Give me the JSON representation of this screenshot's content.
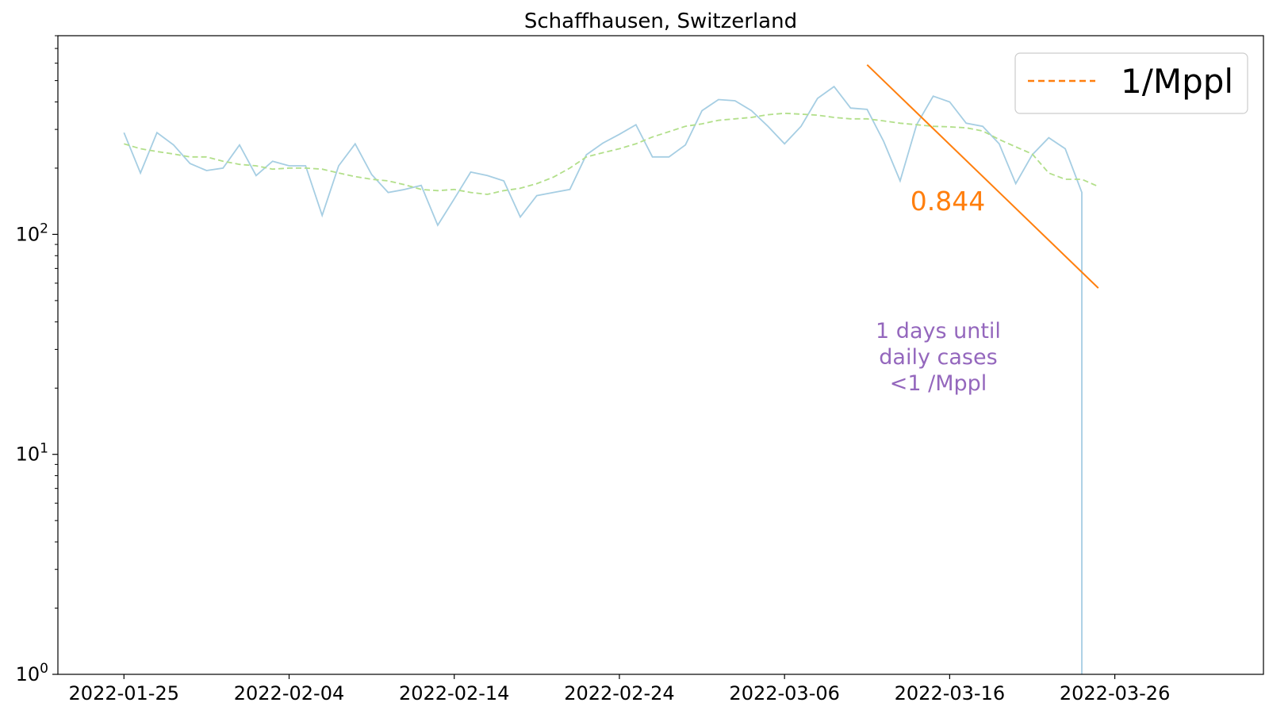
{
  "chart_data": {
    "type": "line",
    "title": "Schaffhausen, Switzerland",
    "xlabel": "",
    "ylabel": "",
    "yscale": "log",
    "ylim": [
      1,
      800
    ],
    "xlim": [
      "2022-01-21",
      "2022-04-04"
    ],
    "x_ticks": [
      "2022-01-25",
      "2022-02-04",
      "2022-02-14",
      "2022-02-24",
      "2022-03-06",
      "2022-03-16",
      "2022-03-26",
      ""
    ],
    "y_ticks": [
      {
        "value": 1,
        "base": "10",
        "exp": "0"
      },
      {
        "value": 10,
        "base": "10",
        "exp": "1"
      },
      {
        "value": 100,
        "base": "10",
        "exp": "2"
      }
    ],
    "grid": false,
    "legend": {
      "position": "top-right",
      "entries": [
        {
          "label": "1/Mppl",
          "color": "#ff7f0e",
          "style": "dashed"
        }
      ]
    },
    "series": [
      {
        "color": "#a6cee3",
        "style": "solid",
        "x": [
          "2022-01-25",
          "2022-01-26",
          "2022-01-27",
          "2022-01-28",
          "2022-01-29",
          "2022-01-30",
          "2022-01-31",
          "2022-02-01",
          "2022-02-02",
          "2022-02-03",
          "2022-02-04",
          "2022-02-05",
          "2022-02-06",
          "2022-02-07",
          "2022-02-08",
          "2022-02-09",
          "2022-02-10",
          "2022-02-11",
          "2022-02-12",
          "2022-02-13",
          "2022-02-14",
          "2022-02-15",
          "2022-02-16",
          "2022-02-17",
          "2022-02-18",
          "2022-02-19",
          "2022-02-20",
          "2022-02-21",
          "2022-02-22",
          "2022-02-23",
          "2022-02-24",
          "2022-02-25",
          "2022-02-26",
          "2022-02-27",
          "2022-02-28",
          "2022-03-01",
          "2022-03-02",
          "2022-03-03",
          "2022-03-04",
          "2022-03-05",
          "2022-03-06",
          "2022-03-07",
          "2022-03-08",
          "2022-03-09",
          "2022-03-10",
          "2022-03-11",
          "2022-03-12",
          "2022-03-13",
          "2022-03-14",
          "2022-03-15",
          "2022-03-16",
          "2022-03-17",
          "2022-03-18",
          "2022-03-19",
          "2022-03-20",
          "2022-03-21",
          "2022-03-22",
          "2022-03-23",
          "2022-03-24",
          "2022-03-24"
        ],
        "y": [
          290,
          190,
          290,
          255,
          210,
          195,
          200,
          255,
          185,
          215,
          205,
          205,
          122,
          205,
          258,
          187,
          155,
          160,
          167,
          110,
          145,
          192,
          185,
          175,
          120,
          150,
          155,
          160,
          230,
          260,
          285,
          315,
          225,
          225,
          255,
          365,
          410,
          405,
          365,
          310,
          258,
          310,
          415,
          470,
          375,
          370,
          265,
          175,
          315,
          425,
          400,
          320,
          310,
          258,
          170,
          230,
          275,
          245,
          155,
          1
        ]
      },
      {
        "color": "#b2df8a",
        "style": "dashed",
        "x": [
          "2022-01-25",
          "2022-01-26",
          "2022-01-27",
          "2022-01-28",
          "2022-01-29",
          "2022-01-30",
          "2022-01-31",
          "2022-02-01",
          "2022-02-02",
          "2022-02-03",
          "2022-02-04",
          "2022-02-05",
          "2022-02-06",
          "2022-02-07",
          "2022-02-08",
          "2022-02-09",
          "2022-02-10",
          "2022-02-11",
          "2022-02-12",
          "2022-02-13",
          "2022-02-14",
          "2022-02-15",
          "2022-02-16",
          "2022-02-17",
          "2022-02-18",
          "2022-02-19",
          "2022-02-20",
          "2022-02-21",
          "2022-02-22",
          "2022-02-23",
          "2022-02-24",
          "2022-02-25",
          "2022-02-26",
          "2022-02-27",
          "2022-02-28",
          "2022-03-01",
          "2022-03-02",
          "2022-03-03",
          "2022-03-04",
          "2022-03-05",
          "2022-03-06",
          "2022-03-07",
          "2022-03-08",
          "2022-03-09",
          "2022-03-10",
          "2022-03-11",
          "2022-03-12",
          "2022-03-13",
          "2022-03-14",
          "2022-03-15",
          "2022-03-16",
          "2022-03-17",
          "2022-03-18",
          "2022-03-19",
          "2022-03-20",
          "2022-03-21",
          "2022-03-22",
          "2022-03-23",
          "2022-03-24",
          "2022-03-25"
        ],
        "y": [
          258,
          245,
          238,
          232,
          225,
          225,
          215,
          208,
          205,
          198,
          200,
          200,
          198,
          190,
          183,
          178,
          175,
          168,
          160,
          158,
          160,
          155,
          152,
          158,
          162,
          170,
          182,
          200,
          225,
          235,
          245,
          258,
          277,
          293,
          310,
          318,
          330,
          335,
          340,
          350,
          355,
          352,
          348,
          340,
          335,
          335,
          328,
          320,
          315,
          310,
          308,
          305,
          295,
          270,
          250,
          232,
          190,
          178,
          178,
          165
        ]
      },
      {
        "color": "#ff7f0e",
        "style": "solid",
        "x": [
          "2022-03-11",
          "2022-03-25"
        ],
        "y": [
          590,
          57
        ]
      }
    ],
    "annotations": [
      {
        "text": "0.844",
        "color": "#ff7f0e"
      },
      {
        "lines": [
          "1 days until",
          "daily cases",
          "<1 /Mppl"
        ],
        "color": "#9467bd"
      }
    ]
  }
}
